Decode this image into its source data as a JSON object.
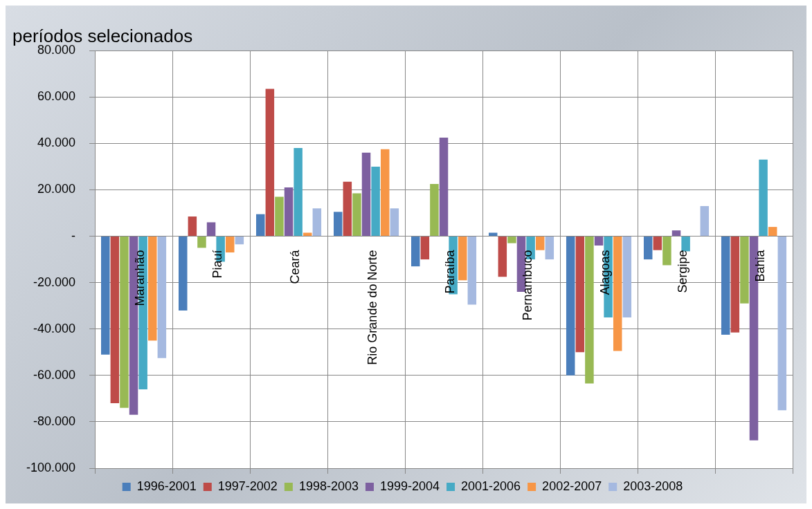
{
  "chart_data": {
    "type": "bar",
    "title": "períodos selecionados",
    "categories": [
      "Maranhão",
      "Piauí",
      "Ceará",
      "Rio Grande do Norte",
      "Paraíba",
      "Pernambuco",
      "Alagoas",
      "Sergipe",
      "Bahia"
    ],
    "series": [
      {
        "name": "1996-2001",
        "color": "#4a7ebb",
        "values": [
          -51,
          -32,
          9.5,
          10.5,
          -13,
          1.5,
          -60,
          -10,
          -42.5
        ]
      },
      {
        "name": "1997-2002",
        "color": "#be4b48",
        "values": [
          -72,
          8.5,
          63.5,
          23.5,
          -10,
          -17.5,
          -50,
          -6,
          -41.5
        ]
      },
      {
        "name": "1998-2003",
        "color": "#98b954",
        "values": [
          -74,
          -5,
          17,
          18.5,
          22.5,
          -3,
          -63.5,
          -12.5,
          -29
        ]
      },
      {
        "name": "1999-2004",
        "color": "#7d60a0",
        "values": [
          -77,
          6,
          21,
          36,
          42.5,
          -24,
          -4,
          2.5,
          -88
        ]
      },
      {
        "name": "2001-2006",
        "color": "#46aac5",
        "values": [
          -66,
          -11,
          38,
          30,
          -25,
          -10,
          -35,
          -6.5,
          33
        ]
      },
      {
        "name": "2002-2007",
        "color": "#f79646",
        "values": [
          -45,
          -7,
          1.5,
          37.5,
          -19,
          -6,
          -49.5,
          null,
          4
        ]
      },
      {
        "name": "2003-2008",
        "color": "#a5b9e0",
        "values": [
          -52.5,
          -3.5,
          12,
          12,
          -29.5,
          -10,
          -35,
          13,
          -75
        ]
      }
    ],
    "ylim": [
      -100,
      80
    ],
    "yticks": [
      {
        "value": -100,
        "label": "-100.000"
      },
      {
        "value": -80,
        "label": "-80.000"
      },
      {
        "value": -60,
        "label": "-60.000"
      },
      {
        "value": -40,
        "label": "-40.000"
      },
      {
        "value": -20,
        "label": "-20.000"
      },
      {
        "value": 0,
        "label": "-"
      },
      {
        "value": 20,
        "label": "20.000"
      },
      {
        "value": 40,
        "label": "40.000"
      },
      {
        "value": 60,
        "label": "60.000"
      },
      {
        "value": 80,
        "label": "80.000"
      }
    ],
    "grid": true,
    "legend": "bottom"
  }
}
